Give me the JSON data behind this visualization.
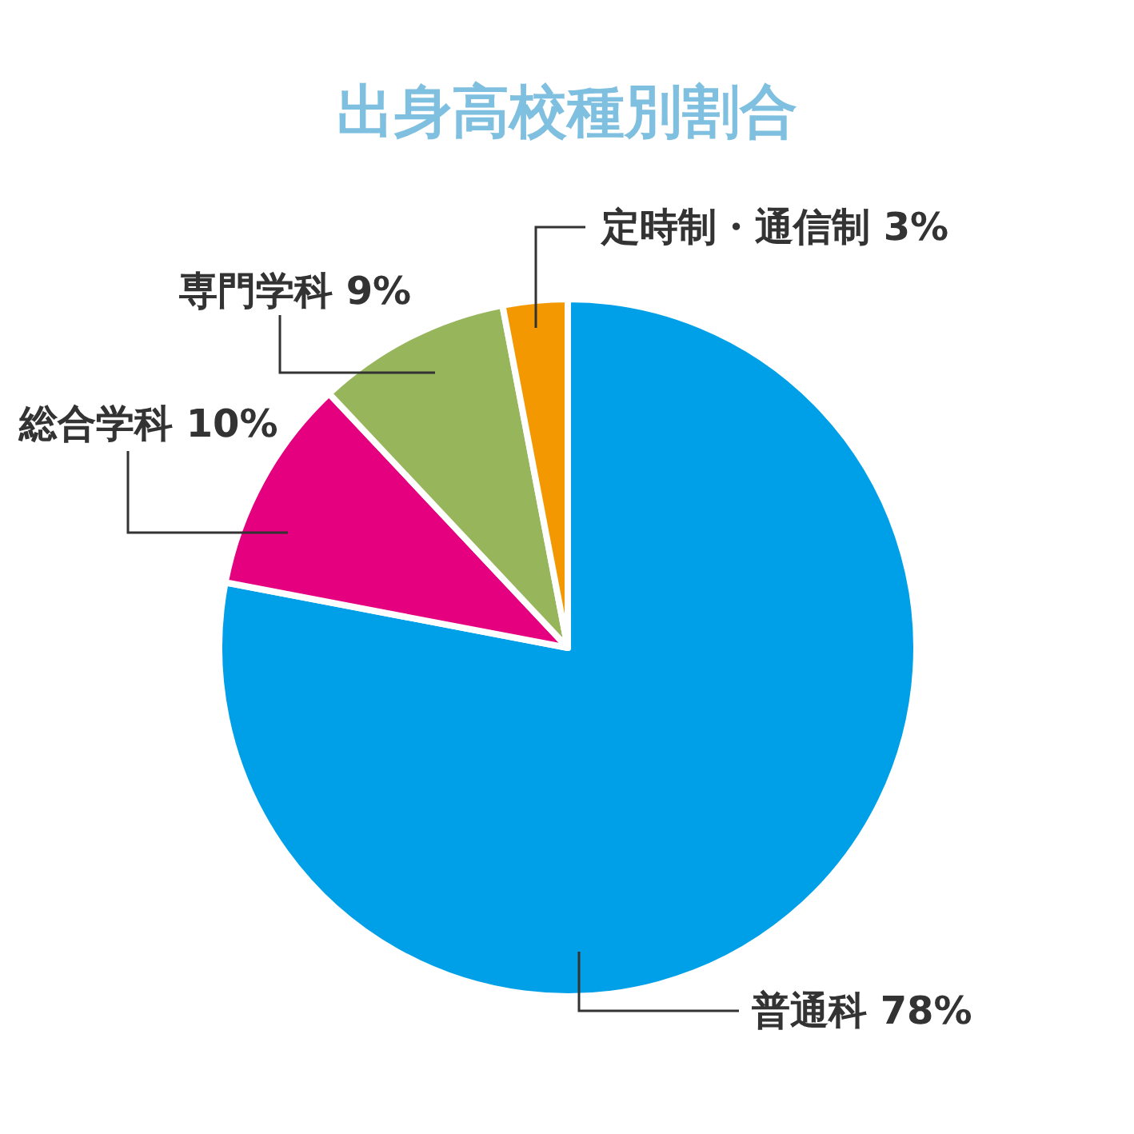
{
  "chart_data": {
    "type": "pie",
    "title": "出身高校種別割合",
    "categories": [
      "普通科",
      "総合学科",
      "専門学科",
      "定時制・通信制"
    ],
    "values": [
      78,
      10,
      9,
      3
    ],
    "value_labels": [
      "78%",
      "10%",
      "9%",
      "3%"
    ],
    "colors": [
      "#00a0e9",
      "#e4007f",
      "#97b55a",
      "#f39800"
    ]
  }
}
